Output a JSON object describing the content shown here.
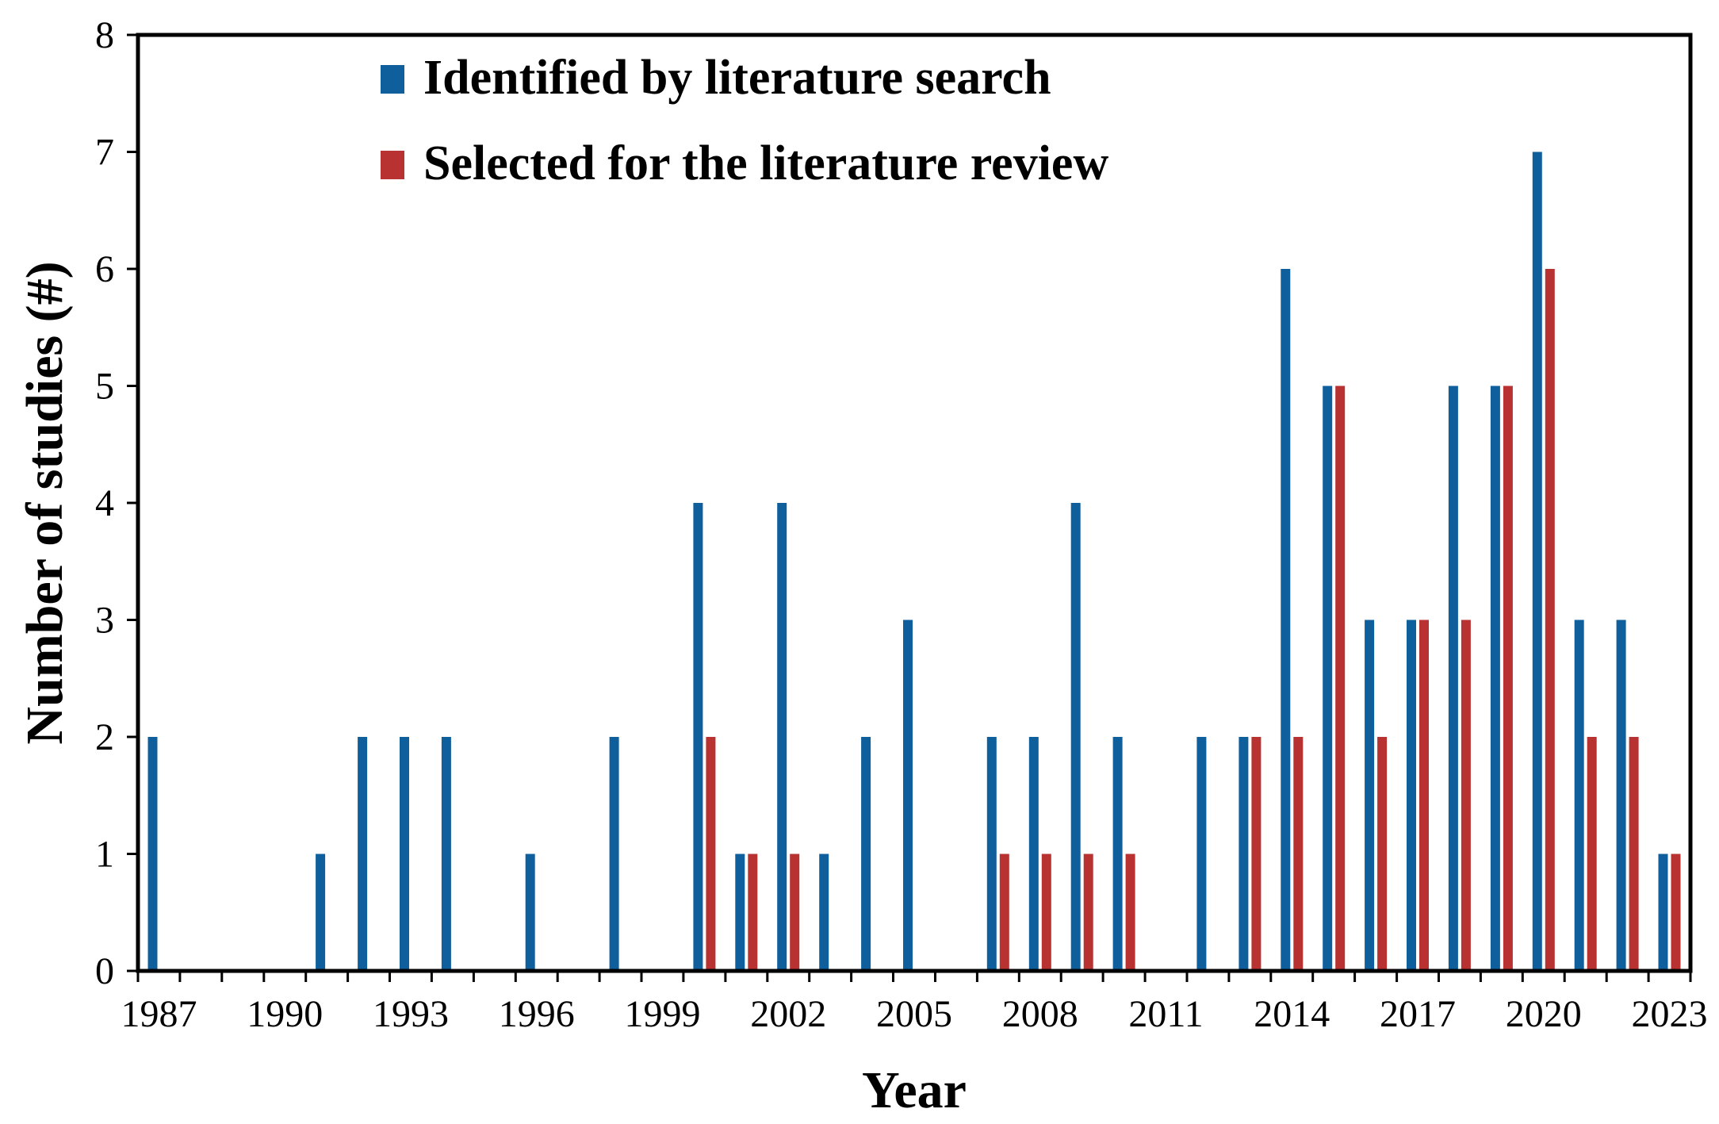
{
  "chart_data": {
    "type": "bar",
    "xlabel": "Year",
    "ylabel": "Number of studies (#)",
    "ylim": [
      0,
      8
    ],
    "yticks": [
      "0",
      "1",
      "2",
      "3",
      "4",
      "5",
      "6",
      "7",
      "8"
    ],
    "xtick_labels": [
      "1987",
      "1990",
      "1993",
      "1996",
      "1999",
      "2002",
      "2005",
      "2008",
      "2011",
      "2014",
      "2017",
      "2020",
      "2023"
    ],
    "grid": false,
    "legend_position": "top-left",
    "categories": [
      1987,
      1988,
      1989,
      1990,
      1991,
      1992,
      1993,
      1994,
      1995,
      1996,
      1997,
      1998,
      1999,
      2000,
      2001,
      2002,
      2003,
      2004,
      2005,
      2006,
      2007,
      2008,
      2009,
      2010,
      2011,
      2012,
      2013,
      2014,
      2015,
      2016,
      2017,
      2018,
      2019,
      2020,
      2021,
      2022,
      2023
    ],
    "series": [
      {
        "name": "Identified by literature search",
        "color": "#0f5f9c",
        "values": [
          2,
          0,
          0,
          0,
          1,
          2,
          2,
          2,
          0,
          1,
          0,
          2,
          0,
          4,
          1,
          4,
          1,
          2,
          3,
          0,
          2,
          2,
          4,
          2,
          0,
          2,
          2,
          6,
          5,
          3,
          3,
          5,
          5,
          7,
          3,
          3,
          1
        ]
      },
      {
        "name": "Selected for the literature review",
        "color": "#b83232",
        "values": [
          0,
          0,
          0,
          0,
          0,
          0,
          0,
          0,
          0,
          0,
          0,
          0,
          0,
          2,
          1,
          1,
          0,
          0,
          0,
          0,
          1,
          1,
          1,
          1,
          0,
          0,
          2,
          2,
          5,
          2,
          3,
          3,
          5,
          6,
          2,
          2,
          1
        ]
      }
    ]
  }
}
